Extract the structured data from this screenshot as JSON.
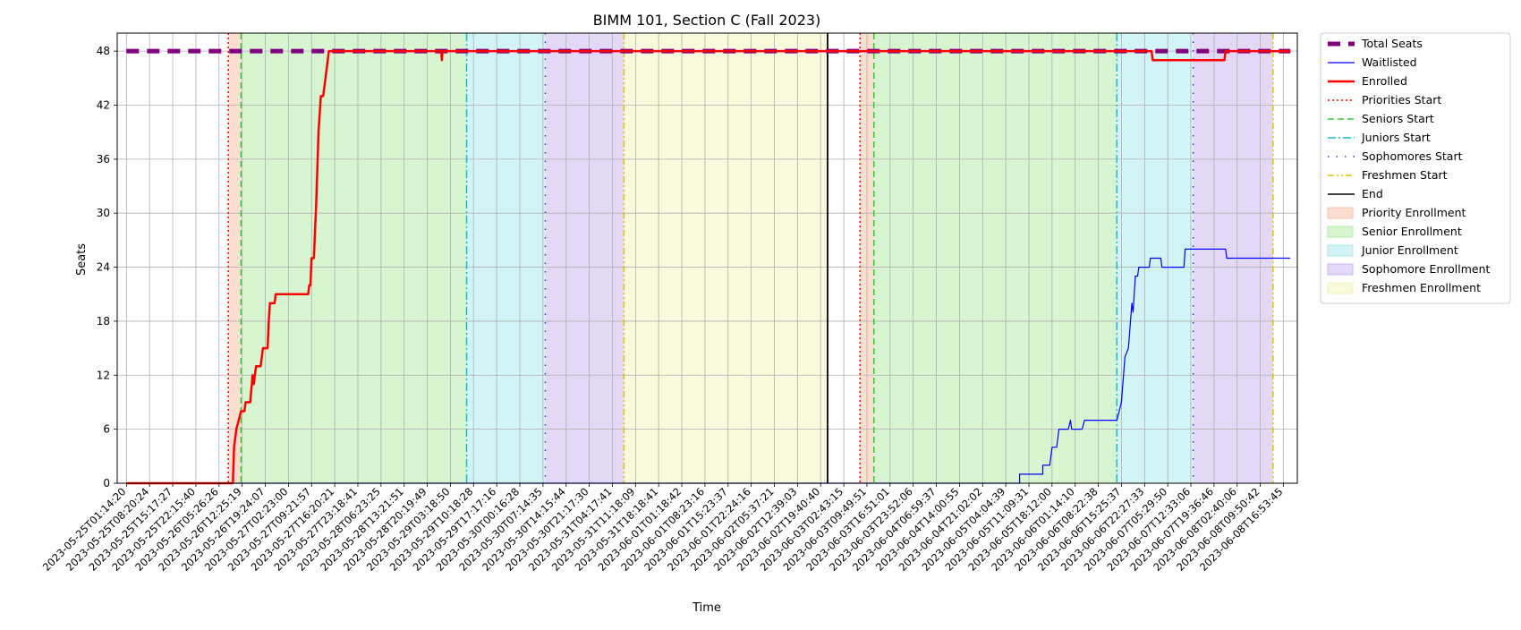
{
  "chart_data": {
    "type": "line",
    "title": "BIMM 101, Section C (Fall 2023)",
    "xlabel": "Time",
    "ylabel": "Seats",
    "ylim": [
      0,
      50
    ],
    "yticks": [
      0,
      6,
      12,
      18,
      24,
      30,
      36,
      42,
      48
    ],
    "grid": true,
    "legend_position": "outside-right",
    "x_ticks": [
      "2023-05-25T01:14:20",
      "2023-05-25T08:20:24",
      "2023-05-25T15:17:27",
      "2023-05-25T22:15:40",
      "2023-05-26T05:26:26",
      "2023-05-26T12:25:19",
      "2023-05-26T19:24:07",
      "2023-05-27T02:23:00",
      "2023-05-27T09:21:57",
      "2023-05-27T16:20:21",
      "2023-05-27T23:18:41",
      "2023-05-28T06:23:25",
      "2023-05-28T13:21:51",
      "2023-05-28T20:19:49",
      "2023-05-29T03:18:50",
      "2023-05-29T10:18:28",
      "2023-05-29T17:17:16",
      "2023-05-30T00:16:28",
      "2023-05-30T07:14:35",
      "2023-05-30T14:15:44",
      "2023-05-30T21:17:30",
      "2023-05-31T04:17:41",
      "2023-05-31T11:18:09",
      "2023-05-31T18:18:41",
      "2023-06-01T01:18:42",
      "2023-06-01T08:23:16",
      "2023-06-01T15:23:37",
      "2023-06-01T22:24:16",
      "2023-06-02T05:37:21",
      "2023-06-02T12:39:03",
      "2023-06-02T19:40:40",
      "2023-06-03T02:43:15",
      "2023-06-03T09:49:51",
      "2023-06-03T16:51:01",
      "2023-06-03T23:52:06",
      "2023-06-04T06:59:37",
      "2023-06-04T14:00:55",
      "2023-06-04T21:02:02",
      "2023-06-05T04:04:39",
      "2023-06-05T11:09:31",
      "2023-06-05T18:12:00",
      "2023-06-06T01:14:10",
      "2023-06-06T08:22:38",
      "2023-06-06T15:25:37",
      "2023-06-06T22:27:33",
      "2023-06-07T05:29:50",
      "2023-06-07T12:33:06",
      "2023-06-07T19:36:46",
      "2023-06-08T02:40:06",
      "2023-06-08T09:50:42",
      "2023-06-08T16:53:45"
    ],
    "series": [
      {
        "name": "Total Seats",
        "color": "#800080",
        "style": "dashed-thick",
        "points": [
          [
            0,
            48
          ],
          [
            50.3,
            48
          ]
        ]
      },
      {
        "name": "Waitlisted",
        "color": "#0000ff",
        "style": "solid-thin",
        "points": [
          [
            0,
            0
          ],
          [
            38.6,
            0
          ],
          [
            38.6,
            1
          ],
          [
            39.6,
            1
          ],
          [
            39.6,
            2
          ],
          [
            39.9,
            2
          ],
          [
            40.0,
            4
          ],
          [
            40.2,
            4
          ],
          [
            40.3,
            6
          ],
          [
            40.7,
            6
          ],
          [
            40.8,
            7
          ],
          [
            40.85,
            6
          ],
          [
            41.3,
            6
          ],
          [
            41.4,
            7
          ],
          [
            42.8,
            7
          ],
          [
            42.9,
            8
          ],
          [
            43.0,
            9
          ],
          [
            43.15,
            14
          ],
          [
            43.3,
            15
          ],
          [
            43.45,
            20
          ],
          [
            43.5,
            19
          ],
          [
            43.6,
            23
          ],
          [
            43.7,
            23
          ],
          [
            43.75,
            24
          ],
          [
            44.2,
            24
          ],
          [
            44.25,
            25
          ],
          [
            44.7,
            25
          ],
          [
            44.75,
            24
          ],
          [
            45.7,
            24
          ],
          [
            45.75,
            26
          ],
          [
            47.5,
            26
          ],
          [
            47.55,
            25
          ],
          [
            50.3,
            25
          ]
        ]
      },
      {
        "name": "Enrolled",
        "color": "#ff0000",
        "style": "solid-thick",
        "points": [
          [
            0,
            0
          ],
          [
            4.6,
            0
          ],
          [
            4.65,
            4
          ],
          [
            4.75,
            6
          ],
          [
            4.85,
            7
          ],
          [
            4.95,
            8
          ],
          [
            5.1,
            8
          ],
          [
            5.15,
            9
          ],
          [
            5.35,
            9
          ],
          [
            5.45,
            12
          ],
          [
            5.5,
            11
          ],
          [
            5.6,
            13
          ],
          [
            5.8,
            13
          ],
          [
            5.9,
            15
          ],
          [
            6.1,
            15
          ],
          [
            6.15,
            18
          ],
          [
            6.2,
            20
          ],
          [
            6.4,
            20
          ],
          [
            6.45,
            21
          ],
          [
            7.85,
            21
          ],
          [
            7.9,
            22
          ],
          [
            7.95,
            22
          ],
          [
            8.0,
            25
          ],
          [
            8.1,
            25
          ],
          [
            8.2,
            31
          ],
          [
            8.3,
            39
          ],
          [
            8.4,
            43
          ],
          [
            8.5,
            43
          ],
          [
            8.6,
            45
          ],
          [
            8.75,
            48
          ],
          [
            13.6,
            48
          ],
          [
            13.63,
            47
          ],
          [
            13.66,
            48
          ],
          [
            44.3,
            48
          ],
          [
            44.35,
            47
          ],
          [
            47.45,
            47
          ],
          [
            47.5,
            48
          ],
          [
            50.3,
            48
          ]
        ]
      }
    ],
    "vertical_markers": [
      {
        "name": "Priorities Start",
        "x": 4.4,
        "color": "#ff0000",
        "style": "dotted"
      },
      {
        "name": "Seniors Start",
        "x": 4.95,
        "color": "#2ecc2e",
        "style": "dashed"
      },
      {
        "name": "Juniors Start",
        "x": 14.7,
        "color": "#17becf",
        "style": "dashdot"
      },
      {
        "name": "Sophomores Start",
        "x": 18.1,
        "color": "#6a1fb0",
        "style": "loosedot"
      },
      {
        "name": "Freshmen Start",
        "x": 21.5,
        "color": "#d6c800",
        "style": "dashdotdot"
      },
      {
        "name": "End",
        "x": 30.3,
        "color": "#000000",
        "style": "solid"
      },
      {
        "name": "Priorities Start",
        "x": 31.7,
        "color": "#ff0000",
        "style": "dotted"
      },
      {
        "name": "Seniors Start",
        "x": 32.3,
        "color": "#2ecc2e",
        "style": "dashed"
      },
      {
        "name": "Juniors Start",
        "x": 42.8,
        "color": "#17becf",
        "style": "dashdot"
      },
      {
        "name": "Sophomores Start",
        "x": 46.1,
        "color": "#6a1fb0",
        "style": "loosedot"
      },
      {
        "name": "Freshmen Start",
        "x": 49.55,
        "color": "#d6c800",
        "style": "dashdotdot"
      }
    ],
    "shaded_spans": [
      {
        "name": "Priority Enrollment",
        "from": 4.4,
        "to": 4.95,
        "color": "#f5b89a"
      },
      {
        "name": "Senior Enrollment",
        "from": 4.95,
        "to": 14.7,
        "color": "#a6e89a"
      },
      {
        "name": "Junior Enrollment",
        "from": 14.7,
        "to": 18.1,
        "color": "#9ee6ec"
      },
      {
        "name": "Sophomore Enrollment",
        "from": 18.1,
        "to": 21.5,
        "color": "#c3a9ee"
      },
      {
        "name": "Freshmen Enrollment",
        "from": 21.5,
        "to": 30.3,
        "color": "#f2f2b0"
      },
      {
        "name": "Priority Enrollment",
        "from": 31.7,
        "to": 32.3,
        "color": "#f5b89a"
      },
      {
        "name": "Senior Enrollment",
        "from": 32.3,
        "to": 42.8,
        "color": "#a6e89a"
      },
      {
        "name": "Junior Enrollment",
        "from": 42.8,
        "to": 46.1,
        "color": "#9ee6ec"
      },
      {
        "name": "Sophomore Enrollment",
        "from": 46.1,
        "to": 49.55,
        "color": "#c3a9ee"
      }
    ],
    "legend": [
      {
        "label": "Total Seats",
        "kind": "line",
        "color": "#800080",
        "style": "dashed-thick"
      },
      {
        "label": "Waitlisted",
        "kind": "line",
        "color": "#0000ff",
        "style": "solid-thin"
      },
      {
        "label": "Enrolled",
        "kind": "line",
        "color": "#ff0000",
        "style": "solid-thick"
      },
      {
        "label": "Priorities Start",
        "kind": "line",
        "color": "#ff0000",
        "style": "dotted"
      },
      {
        "label": "Seniors Start",
        "kind": "line",
        "color": "#2ecc2e",
        "style": "dashed"
      },
      {
        "label": "Juniors Start",
        "kind": "line",
        "color": "#17becf",
        "style": "dashdot"
      },
      {
        "label": "Sophomores Start",
        "kind": "line",
        "color": "#6a1fb0",
        "style": "loosedot"
      },
      {
        "label": "Freshmen Start",
        "kind": "line",
        "color": "#d6c800",
        "style": "dashdotdot"
      },
      {
        "label": "End",
        "kind": "line",
        "color": "#000000",
        "style": "solid"
      },
      {
        "label": "Priority Enrollment",
        "kind": "patch",
        "color": "#f5b89a"
      },
      {
        "label": "Senior Enrollment",
        "kind": "patch",
        "color": "#a6e89a"
      },
      {
        "label": "Junior Enrollment",
        "kind": "patch",
        "color": "#9ee6ec"
      },
      {
        "label": "Sophomore Enrollment",
        "kind": "patch",
        "color": "#c3a9ee"
      },
      {
        "label": "Freshmen Enrollment",
        "kind": "patch",
        "color": "#f2f2b0"
      }
    ]
  }
}
